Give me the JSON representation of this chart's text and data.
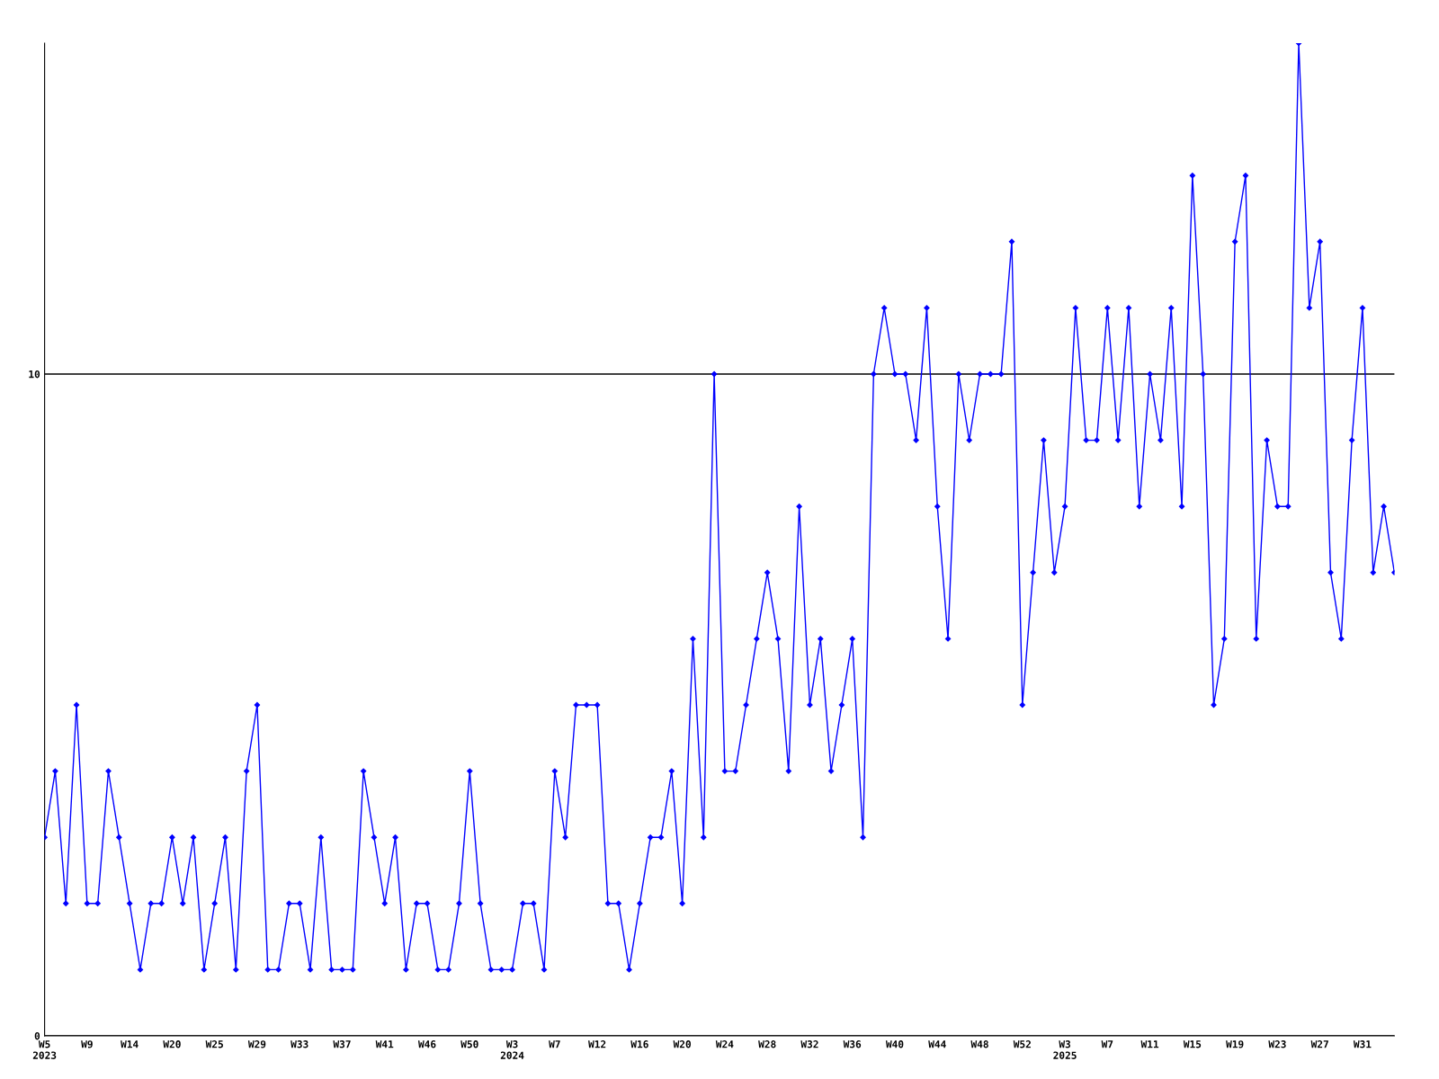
{
  "chart_data": {
    "type": "line",
    "color": "#0000ff",
    "marker": "diamond",
    "line_style": "solid",
    "grid": "y",
    "ylim": [
      0,
      15
    ],
    "yticks": [
      0,
      10
    ],
    "categories": [
      "W5\n2023",
      null,
      null,
      null,
      "W9",
      null,
      null,
      null,
      "W14",
      null,
      null,
      null,
      "W20",
      null,
      null,
      null,
      "W25",
      null,
      null,
      null,
      "W29",
      null,
      null,
      null,
      "W33",
      null,
      null,
      null,
      "W37",
      null,
      null,
      null,
      "W41",
      null,
      null,
      null,
      "W46",
      null,
      null,
      null,
      "W50",
      null,
      null,
      null,
      "W3\n2024",
      null,
      null,
      null,
      "W7",
      null,
      null,
      null,
      "W12",
      null,
      null,
      null,
      "W16",
      null,
      null,
      null,
      "W20",
      null,
      null,
      null,
      "W24",
      null,
      null,
      null,
      "W28",
      null,
      null,
      null,
      "W32",
      null,
      null,
      null,
      "W36",
      null,
      null,
      null,
      "W40",
      null,
      null,
      null,
      "W44",
      null,
      null,
      null,
      "W48",
      null,
      null,
      null,
      "W52",
      null,
      null,
      null,
      "W3\n2025",
      null,
      null,
      null,
      "W7",
      null,
      null,
      null,
      "W11",
      null,
      null,
      null,
      "W15",
      null,
      null,
      null,
      "W19",
      null,
      null,
      null,
      "W23",
      null,
      null,
      null,
      "W27",
      null,
      null,
      null,
      "W31",
      null,
      null,
      null
    ],
    "values": [
      3,
      4,
      2,
      5,
      2,
      2,
      4,
      3,
      2,
      1,
      2,
      2,
      3,
      2,
      3,
      1,
      2,
      3,
      1,
      4,
      5,
      1,
      1,
      2,
      2,
      1,
      3,
      1,
      1,
      1,
      4,
      3,
      2,
      3,
      1,
      2,
      2,
      1,
      1,
      2,
      4,
      2,
      1,
      1,
      1,
      2,
      2,
      1,
      4,
      3,
      5,
      5,
      5,
      2,
      2,
      1,
      2,
      3,
      3,
      4,
      2,
      6,
      3,
      10,
      4,
      4,
      5,
      6,
      7,
      6,
      4,
      8,
      5,
      6,
      4,
      5,
      6,
      3,
      10,
      11,
      10,
      10,
      9,
      11,
      8,
      6,
      10,
      9,
      10,
      10,
      10,
      12,
      5,
      7,
      9,
      7,
      8,
      11,
      9,
      9,
      11,
      9,
      11,
      8,
      10,
      9,
      11,
      8,
      13,
      10,
      5,
      6,
      12,
      13,
      6,
      9,
      8,
      8,
      15,
      11,
      12,
      7,
      6,
      9,
      11,
      7,
      8,
      7
    ]
  }
}
